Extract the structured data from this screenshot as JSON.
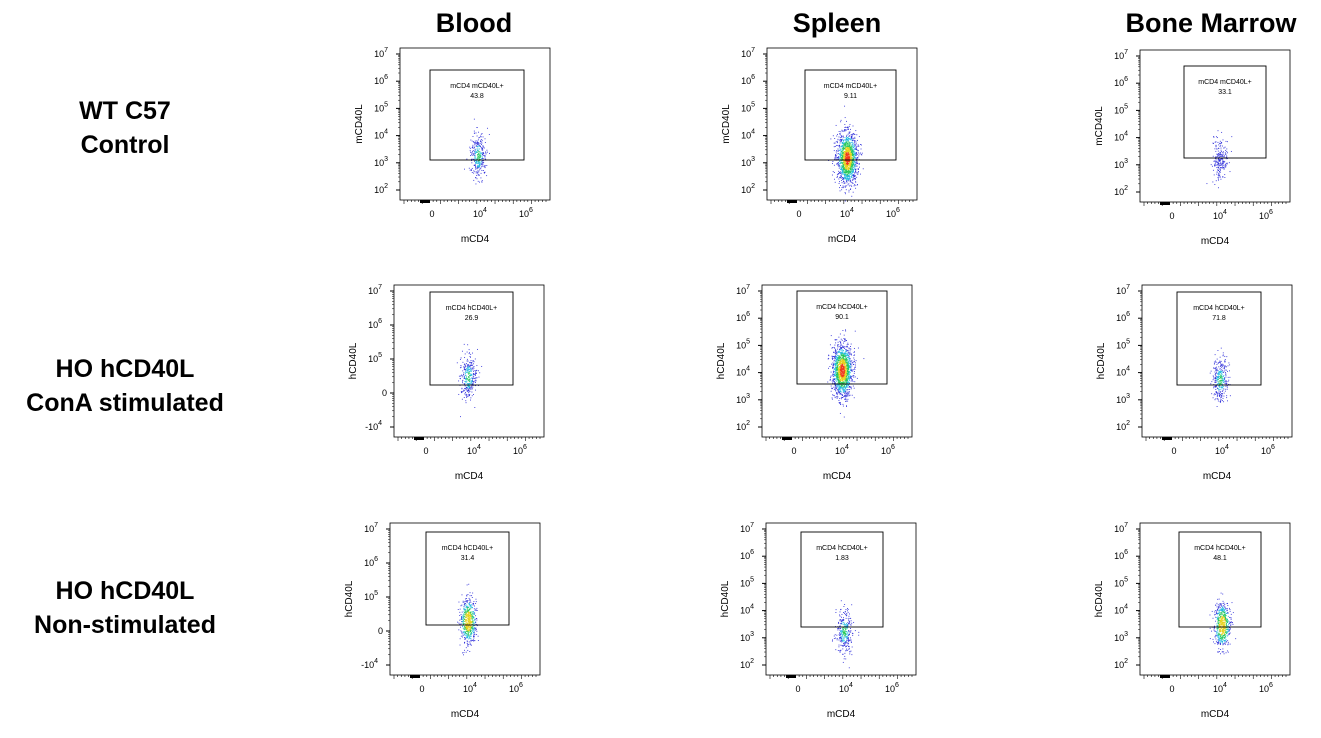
{
  "columns": [
    "Blood",
    "Spleen",
    "Bone Marrow"
  ],
  "rows": [
    {
      "line1": "WT C57",
      "line2": "Control"
    },
    {
      "line1": "HO hCD40L",
      "line2": "ConA stimulated"
    },
    {
      "line1": "HO hCD40L",
      "line2": "Non-stimulated"
    }
  ],
  "chart_data": [
    {
      "type": "scatter",
      "row": 0,
      "col": 0,
      "xlabel": "mCD4",
      "ylabel": "mCD40L",
      "xticks": [
        "0",
        "10",
        "10"
      ],
      "xtick_exp": [
        "",
        "4",
        "6"
      ],
      "yticks": [
        "10",
        "10",
        "10",
        "10",
        "10",
        "10"
      ],
      "ytick_exp": [
        "2",
        "3",
        "4",
        "5",
        "6",
        "7"
      ],
      "gate": {
        "name": "mCD4 mCD40L+",
        "value": "43.8"
      },
      "population": {
        "density": "low"
      }
    },
    {
      "type": "scatter",
      "row": 0,
      "col": 1,
      "xlabel": "mCD4",
      "ylabel": "mCD40L",
      "xticks": [
        "0",
        "10",
        "10"
      ],
      "xtick_exp": [
        "",
        "4",
        "6"
      ],
      "yticks": [
        "10",
        "10",
        "10",
        "10",
        "10",
        "10"
      ],
      "ytick_exp": [
        "2",
        "3",
        "4",
        "5",
        "6",
        "7"
      ],
      "gate": {
        "name": "mCD4 mCD40L+",
        "value": "9.11"
      },
      "population": {
        "density": "high"
      }
    },
    {
      "type": "scatter",
      "row": 0,
      "col": 2,
      "xlabel": "mCD4",
      "ylabel": "mCD40L",
      "xticks": [
        "0",
        "10",
        "10"
      ],
      "xtick_exp": [
        "",
        "4",
        "6"
      ],
      "yticks": [
        "10",
        "10",
        "10",
        "10",
        "10",
        "10"
      ],
      "ytick_exp": [
        "2",
        "3",
        "4",
        "5",
        "6",
        "7"
      ],
      "gate": {
        "name": "mCD4 mCD40L+",
        "value": "33.1"
      },
      "population": {
        "density": "very-low"
      }
    },
    {
      "type": "scatter",
      "row": 1,
      "col": 0,
      "xlabel": "mCD4",
      "ylabel": "hCD40L",
      "xticks": [
        "0",
        "10",
        "10"
      ],
      "xtick_exp": [
        "",
        "4",
        "6"
      ],
      "yticks": [
        "-10",
        "0",
        "10",
        "10",
        "10"
      ],
      "ytick_exp": [
        "4",
        "",
        "5",
        "6",
        "7"
      ],
      "gate": {
        "name": "mCD4 hCD40L+",
        "value": "26.9"
      },
      "population": {
        "density": "low"
      }
    },
    {
      "type": "scatter",
      "row": 1,
      "col": 1,
      "xlabel": "mCD4",
      "ylabel": "hCD40L",
      "xticks": [
        "0",
        "10",
        "10"
      ],
      "xtick_exp": [
        "",
        "4",
        "6"
      ],
      "yticks": [
        "10",
        "10",
        "10",
        "10",
        "10",
        "10"
      ],
      "ytick_exp": [
        "2",
        "3",
        "4",
        "5",
        "6",
        "7"
      ],
      "gate": {
        "name": "mCD4 hCD40L+",
        "value": "90.1"
      },
      "population": {
        "density": "high"
      }
    },
    {
      "type": "scatter",
      "row": 1,
      "col": 2,
      "xlabel": "mCD4",
      "ylabel": "hCD40L",
      "xticks": [
        "0",
        "10",
        "10"
      ],
      "xtick_exp": [
        "",
        "4",
        "6"
      ],
      "yticks": [
        "10",
        "10",
        "10",
        "10",
        "10",
        "10"
      ],
      "ytick_exp": [
        "2",
        "3",
        "4",
        "5",
        "6",
        "7"
      ],
      "gate": {
        "name": "mCD4 hCD40L+",
        "value": "71.8"
      },
      "population": {
        "density": "low"
      }
    },
    {
      "type": "scatter",
      "row": 2,
      "col": 0,
      "xlabel": "mCD4",
      "ylabel": "hCD40L",
      "xticks": [
        "0",
        "10",
        "10"
      ],
      "xtick_exp": [
        "",
        "4",
        "6"
      ],
      "yticks": [
        "-10",
        "0",
        "10",
        "10",
        "10"
      ],
      "ytick_exp": [
        "4",
        "",
        "5",
        "6",
        "7"
      ],
      "gate": {
        "name": "mCD4 hCD40L+",
        "value": "31.4"
      },
      "population": {
        "density": "medium"
      }
    },
    {
      "type": "scatter",
      "row": 2,
      "col": 1,
      "xlabel": "mCD4",
      "ylabel": "hCD40L",
      "xticks": [
        "0",
        "10",
        "10"
      ],
      "xtick_exp": [
        "",
        "4",
        "6"
      ],
      "yticks": [
        "10",
        "10",
        "10",
        "10",
        "10",
        "10"
      ],
      "ytick_exp": [
        "2",
        "3",
        "4",
        "5",
        "6",
        "7"
      ],
      "gate": {
        "name": "mCD4 hCD40L+",
        "value": "1.83"
      },
      "population": {
        "density": "low"
      }
    },
    {
      "type": "scatter",
      "row": 2,
      "col": 2,
      "xlabel": "mCD4",
      "ylabel": "hCD40L",
      "xticks": [
        "0",
        "10",
        "10"
      ],
      "xtick_exp": [
        "",
        "4",
        "6"
      ],
      "yticks": [
        "10",
        "10",
        "10",
        "10",
        "10",
        "10"
      ],
      "ytick_exp": [
        "2",
        "3",
        "4",
        "5",
        "6",
        "7"
      ],
      "gate": {
        "name": "mCD4 hCD40L+",
        "value": "48.1"
      },
      "population": {
        "density": "medium"
      }
    }
  ]
}
